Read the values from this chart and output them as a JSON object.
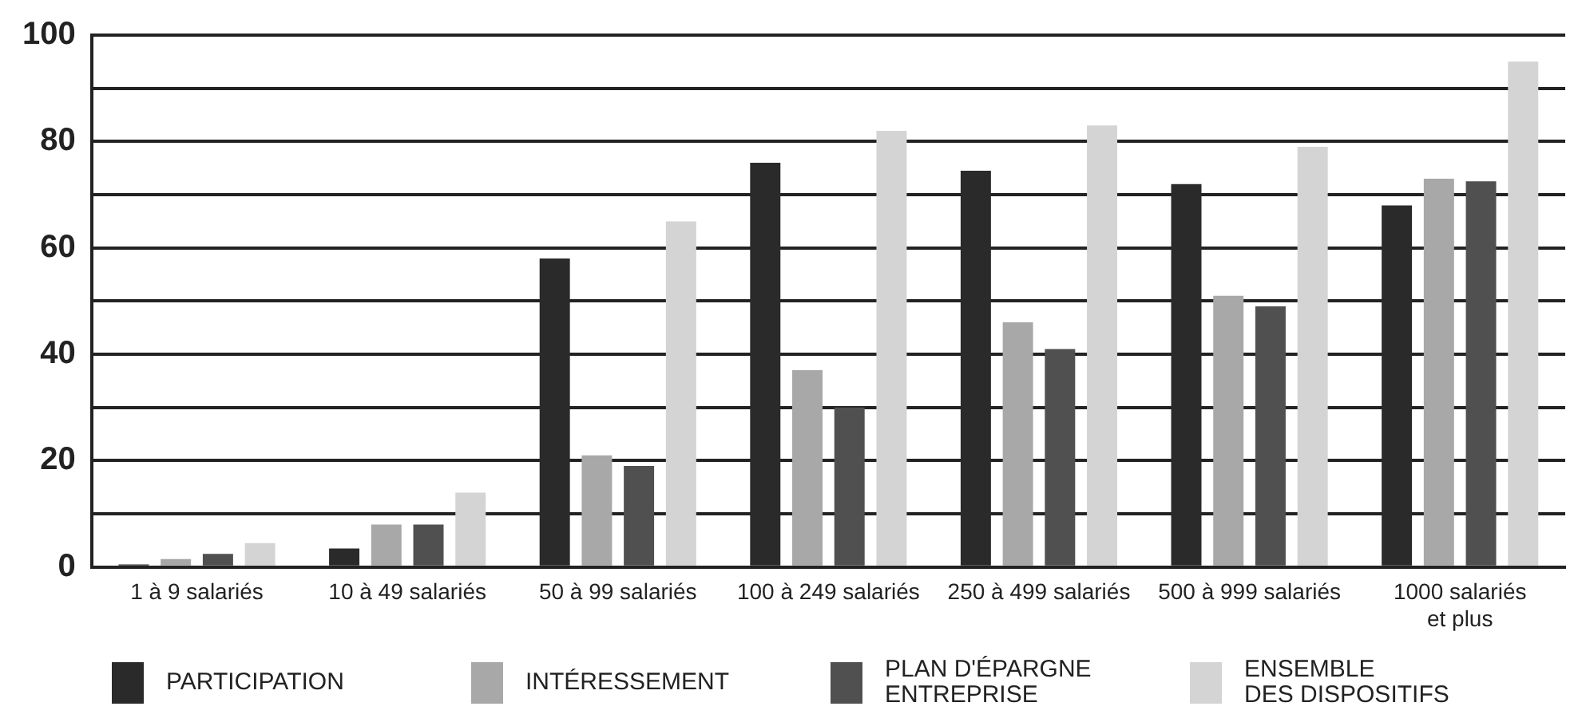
{
  "chart_data": {
    "type": "bar",
    "categories": [
      "1 à 9 salariés",
      "10 à 49 salariés",
      "50 à 99 salariés",
      "100 à 249 salariés",
      "250 à 499 salariés",
      "500 à 999 salariés",
      "1000 salariés\net plus"
    ],
    "series": [
      {
        "name": "PARTICIPATION",
        "color": "#2a2a2a",
        "values": [
          0.5,
          3.5,
          58,
          76,
          74.5,
          72,
          68
        ]
      },
      {
        "name": "INTÉRESSEMENT",
        "color": "#a8a8a8",
        "values": [
          1.5,
          8,
          21,
          37,
          46,
          51,
          73
        ]
      },
      {
        "name": "PLAN D'ÉPARGNE\nENTREPRISE",
        "color": "#505050",
        "values": [
          2.5,
          8,
          19,
          30,
          41,
          49,
          72.5
        ]
      },
      {
        "name": "ENSEMBLE\nDES DISPOSITIFS",
        "color": "#d4d4d4",
        "values": [
          4.5,
          14,
          65,
          82,
          83,
          79,
          95
        ]
      }
    ],
    "ylim": [
      0,
      100
    ],
    "yticks": [
      0,
      {
        "value": 10,
        "label": null
      },
      20,
      {
        "value": 30,
        "label": null
      },
      40,
      {
        "value": 50,
        "label": null
      },
      60,
      {
        "value": 70,
        "label": null
      },
      80,
      {
        "value": 90,
        "label": null
      },
      100
    ],
    "grid": "y",
    "legend": "bottom"
  }
}
